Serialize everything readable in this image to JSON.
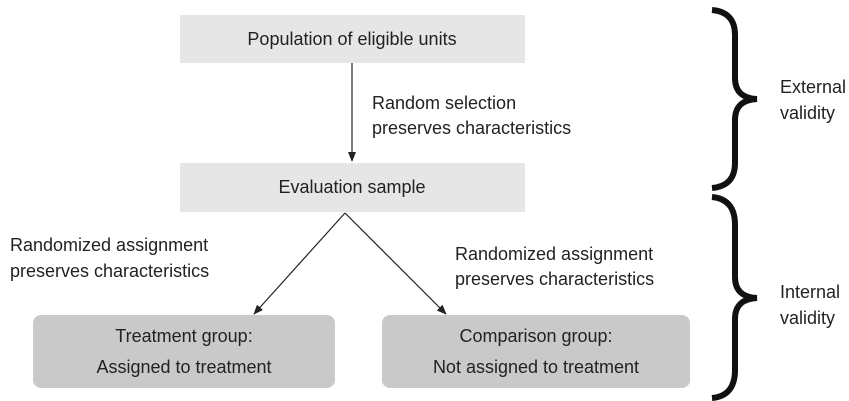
{
  "nodes": [
    {
      "lines": [
        "Population of eligible units"
      ]
    },
    {
      "lines": [
        "Evaluation sample"
      ]
    },
    {
      "lines": [
        "Treatment group:",
        "Assigned to treatment"
      ]
    },
    {
      "lines": [
        "Comparison group:",
        "Not assigned to treatment"
      ]
    }
  ],
  "edges": [
    {
      "lines": [
        "Random selection",
        "preserves characteristics"
      ]
    },
    {
      "lines": [
        "Randomized assignment",
        "preserves characteristics"
      ]
    },
    {
      "lines": [
        "Randomized assignment",
        "preserves characteristics"
      ]
    }
  ],
  "braces": [
    {
      "lines": [
        "External",
        "validity"
      ]
    },
    {
      "lines": [
        "Internal",
        "validity"
      ]
    }
  ]
}
